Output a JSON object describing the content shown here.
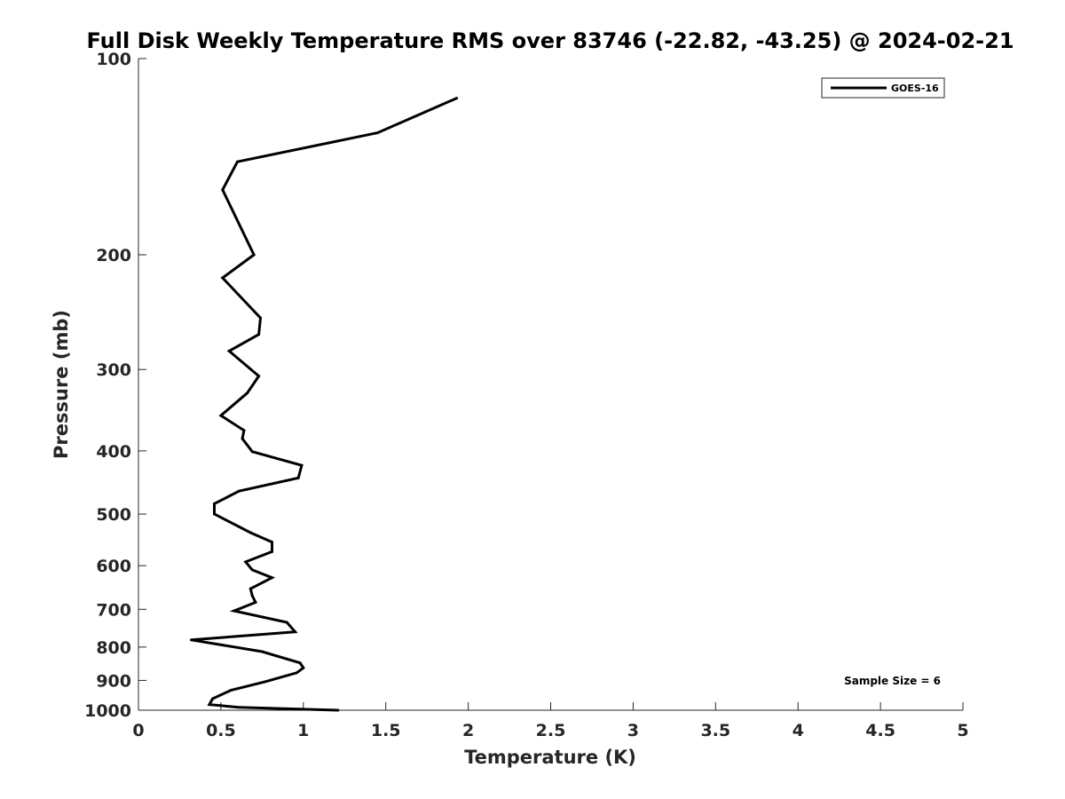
{
  "chart_data": {
    "type": "line",
    "title": "Full Disk Weekly Temperature RMS over 83746 (-22.82, -43.25) @ 2024-02-21",
    "xlabel": "Temperature (K)",
    "ylabel": "Pressure (mb)",
    "xlim": [
      0,
      5
    ],
    "ylim": [
      100,
      1000
    ],
    "y_scale": "log",
    "y_reversed": true,
    "xticks": [
      "0",
      "0.5",
      "1",
      "1.5",
      "2",
      "2.5",
      "3",
      "3.5",
      "4",
      "4.5",
      "5"
    ],
    "yticks": [
      "100",
      "200",
      "300",
      "400",
      "500",
      "600",
      "700",
      "800",
      "900",
      "1000"
    ],
    "grid": false,
    "legend_position": "top-right",
    "annotation": "Sample Size = 6",
    "series": [
      {
        "name": "GOES-16",
        "color": "#000000",
        "x": [
          1.93,
          1.45,
          0.6,
          0.51,
          0.7,
          0.51,
          0.74,
          0.73,
          0.55,
          0.73,
          0.66,
          0.5,
          0.64,
          0.63,
          0.69,
          0.99,
          0.97,
          0.61,
          0.46,
          0.46,
          0.68,
          0.81,
          0.81,
          0.65,
          0.69,
          0.81,
          0.68,
          0.69,
          0.71,
          0.58,
          0.9,
          0.95,
          0.32,
          0.75,
          0.98,
          1.0,
          0.96,
          0.77,
          0.56,
          0.45,
          0.43,
          0.61,
          1.21
        ],
        "y": [
          115,
          130,
          144,
          159,
          200,
          217,
          250,
          265,
          281,
          307,
          326,
          353,
          372,
          383,
          401,
          421,
          440,
          461,
          482,
          500,
          534,
          552,
          571,
          592,
          609,
          626,
          651,
          667,
          683,
          704,
          733,
          758,
          780,
          813,
          846,
          861,
          876,
          904,
          932,
          960,
          980,
          990,
          1000
        ]
      }
    ]
  }
}
